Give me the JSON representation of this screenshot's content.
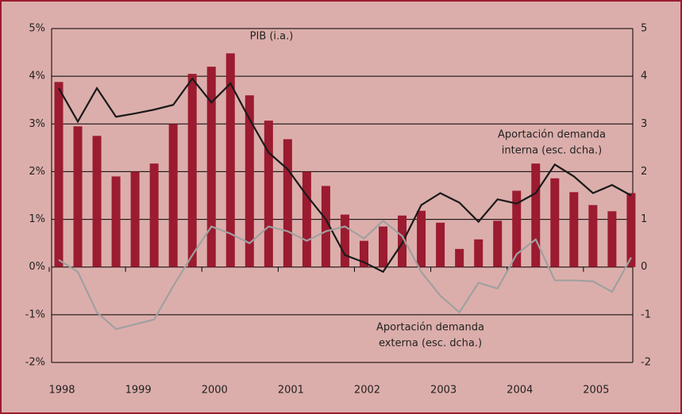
{
  "chart_data": {
    "type": "bar_line",
    "categories": [
      "1998",
      null,
      null,
      null,
      "1999",
      null,
      null,
      null,
      "2000",
      null,
      null,
      null,
      "2001",
      null,
      null,
      null,
      "2002",
      null,
      null,
      null,
      "2003",
      null,
      null,
      null,
      "2004",
      null,
      null,
      null,
      "2005",
      null,
      null
    ],
    "series": [
      {
        "name": [
          "PIB (i.a.)"
        ],
        "type": "bar",
        "color": "#9b1b30",
        "axis": "y",
        "values": [
          3.88,
          2.95,
          2.75,
          1.9,
          2.0,
          2.17,
          3.0,
          4.05,
          4.2,
          4.48,
          3.6,
          3.07,
          2.68,
          2.0,
          1.7,
          1.1,
          0.55,
          0.85,
          1.08,
          1.18,
          0.93,
          0.38,
          0.58,
          0.97,
          1.6,
          2.17,
          1.86,
          1.57,
          1.3,
          1.17,
          1.55
        ]
      },
      {
        "name": [
          "Aportación demanda",
          "interna (esc. dcha.)"
        ],
        "type": "line",
        "color": "#1a1a1a",
        "axis": "y2",
        "values": [
          3.75,
          3.05,
          3.75,
          3.15,
          3.22,
          3.3,
          3.4,
          3.95,
          3.45,
          3.85,
          3.1,
          2.4,
          2.05,
          1.5,
          1.0,
          0.25,
          0.1,
          -0.1,
          0.5,
          1.3,
          1.55,
          1.35,
          0.95,
          1.42,
          1.33,
          1.55,
          2.15,
          1.9,
          1.55,
          1.72,
          1.5
        ]
      },
      {
        "name": [
          "Aportación demanda",
          "externa (esc. dcha.)"
        ],
        "type": "line",
        "color": "#a0a0a0",
        "axis": "y2",
        "values": [
          0.15,
          -0.1,
          -0.95,
          -1.3,
          -1.2,
          -1.1,
          -0.4,
          0.25,
          0.85,
          0.7,
          0.5,
          0.85,
          0.75,
          0.55,
          0.75,
          0.85,
          0.6,
          0.97,
          0.65,
          -0.1,
          -0.6,
          -0.95,
          -0.33,
          -0.45,
          0.27,
          0.58,
          -0.28,
          -0.28,
          -0.3,
          -0.52,
          0.2
        ]
      }
    ],
    "ylim": [
      -2,
      5
    ],
    "yticks": [
      {
        "value": 5,
        "label": "5%"
      },
      {
        "value": 4,
        "label": "4%"
      },
      {
        "value": 3,
        "label": "3%"
      },
      {
        "value": 2,
        "label": "2%"
      },
      {
        "value": 1,
        "label": "1%"
      },
      {
        "value": 0,
        "label": "0%"
      },
      {
        "value": -1,
        "label": "-1%"
      },
      {
        "value": -2,
        "label": "-2%"
      }
    ],
    "y2lim": [
      -2,
      5
    ],
    "y2ticks": [
      5,
      4,
      3,
      2,
      1,
      0,
      -1,
      -2
    ],
    "grid": true
  }
}
